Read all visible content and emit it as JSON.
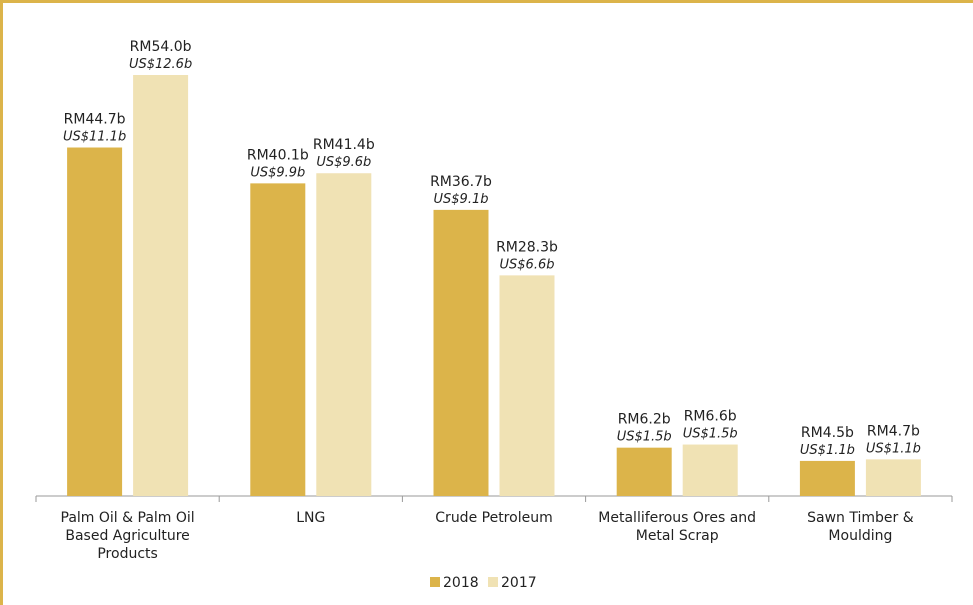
{
  "chart_data": {
    "type": "bar",
    "categories": [
      [
        "Palm Oil & Palm Oil",
        "Based Agriculture",
        "Products"
      ],
      [
        "LNG"
      ],
      [
        "Crude Petroleum"
      ],
      [
        "Metalliferous Ores and",
        "Metal Scrap"
      ],
      [
        "Sawn Timber &",
        "Moulding"
      ]
    ],
    "series": [
      {
        "name": "2018",
        "color": "#dcb44a",
        "values": [
          44.7,
          40.1,
          36.7,
          6.2,
          4.5
        ],
        "labels_rm": [
          "RM44.7b",
          "RM40.1b",
          "RM36.7b",
          "RM6.2b",
          "RM4.5b"
        ],
        "labels_us": [
          "US$11.1b",
          "US$9.9b",
          "US$9.1b",
          "US$1.5b",
          "US$1.1b"
        ]
      },
      {
        "name": "2017",
        "color": "#f0e2b4",
        "values": [
          54.0,
          41.4,
          28.3,
          6.6,
          4.7
        ],
        "labels_rm": [
          "RM54.0b",
          "RM41.4b",
          "RM28.3b",
          "RM6.6b",
          "RM4.7b"
        ],
        "labels_us": [
          "US$12.6b",
          "US$9.6b",
          "US$6.6b",
          "US$1.5b",
          "US$1.1b"
        ]
      }
    ],
    "ylim": [
      0,
      57
    ],
    "grid": false,
    "legend": "bottom-center"
  }
}
